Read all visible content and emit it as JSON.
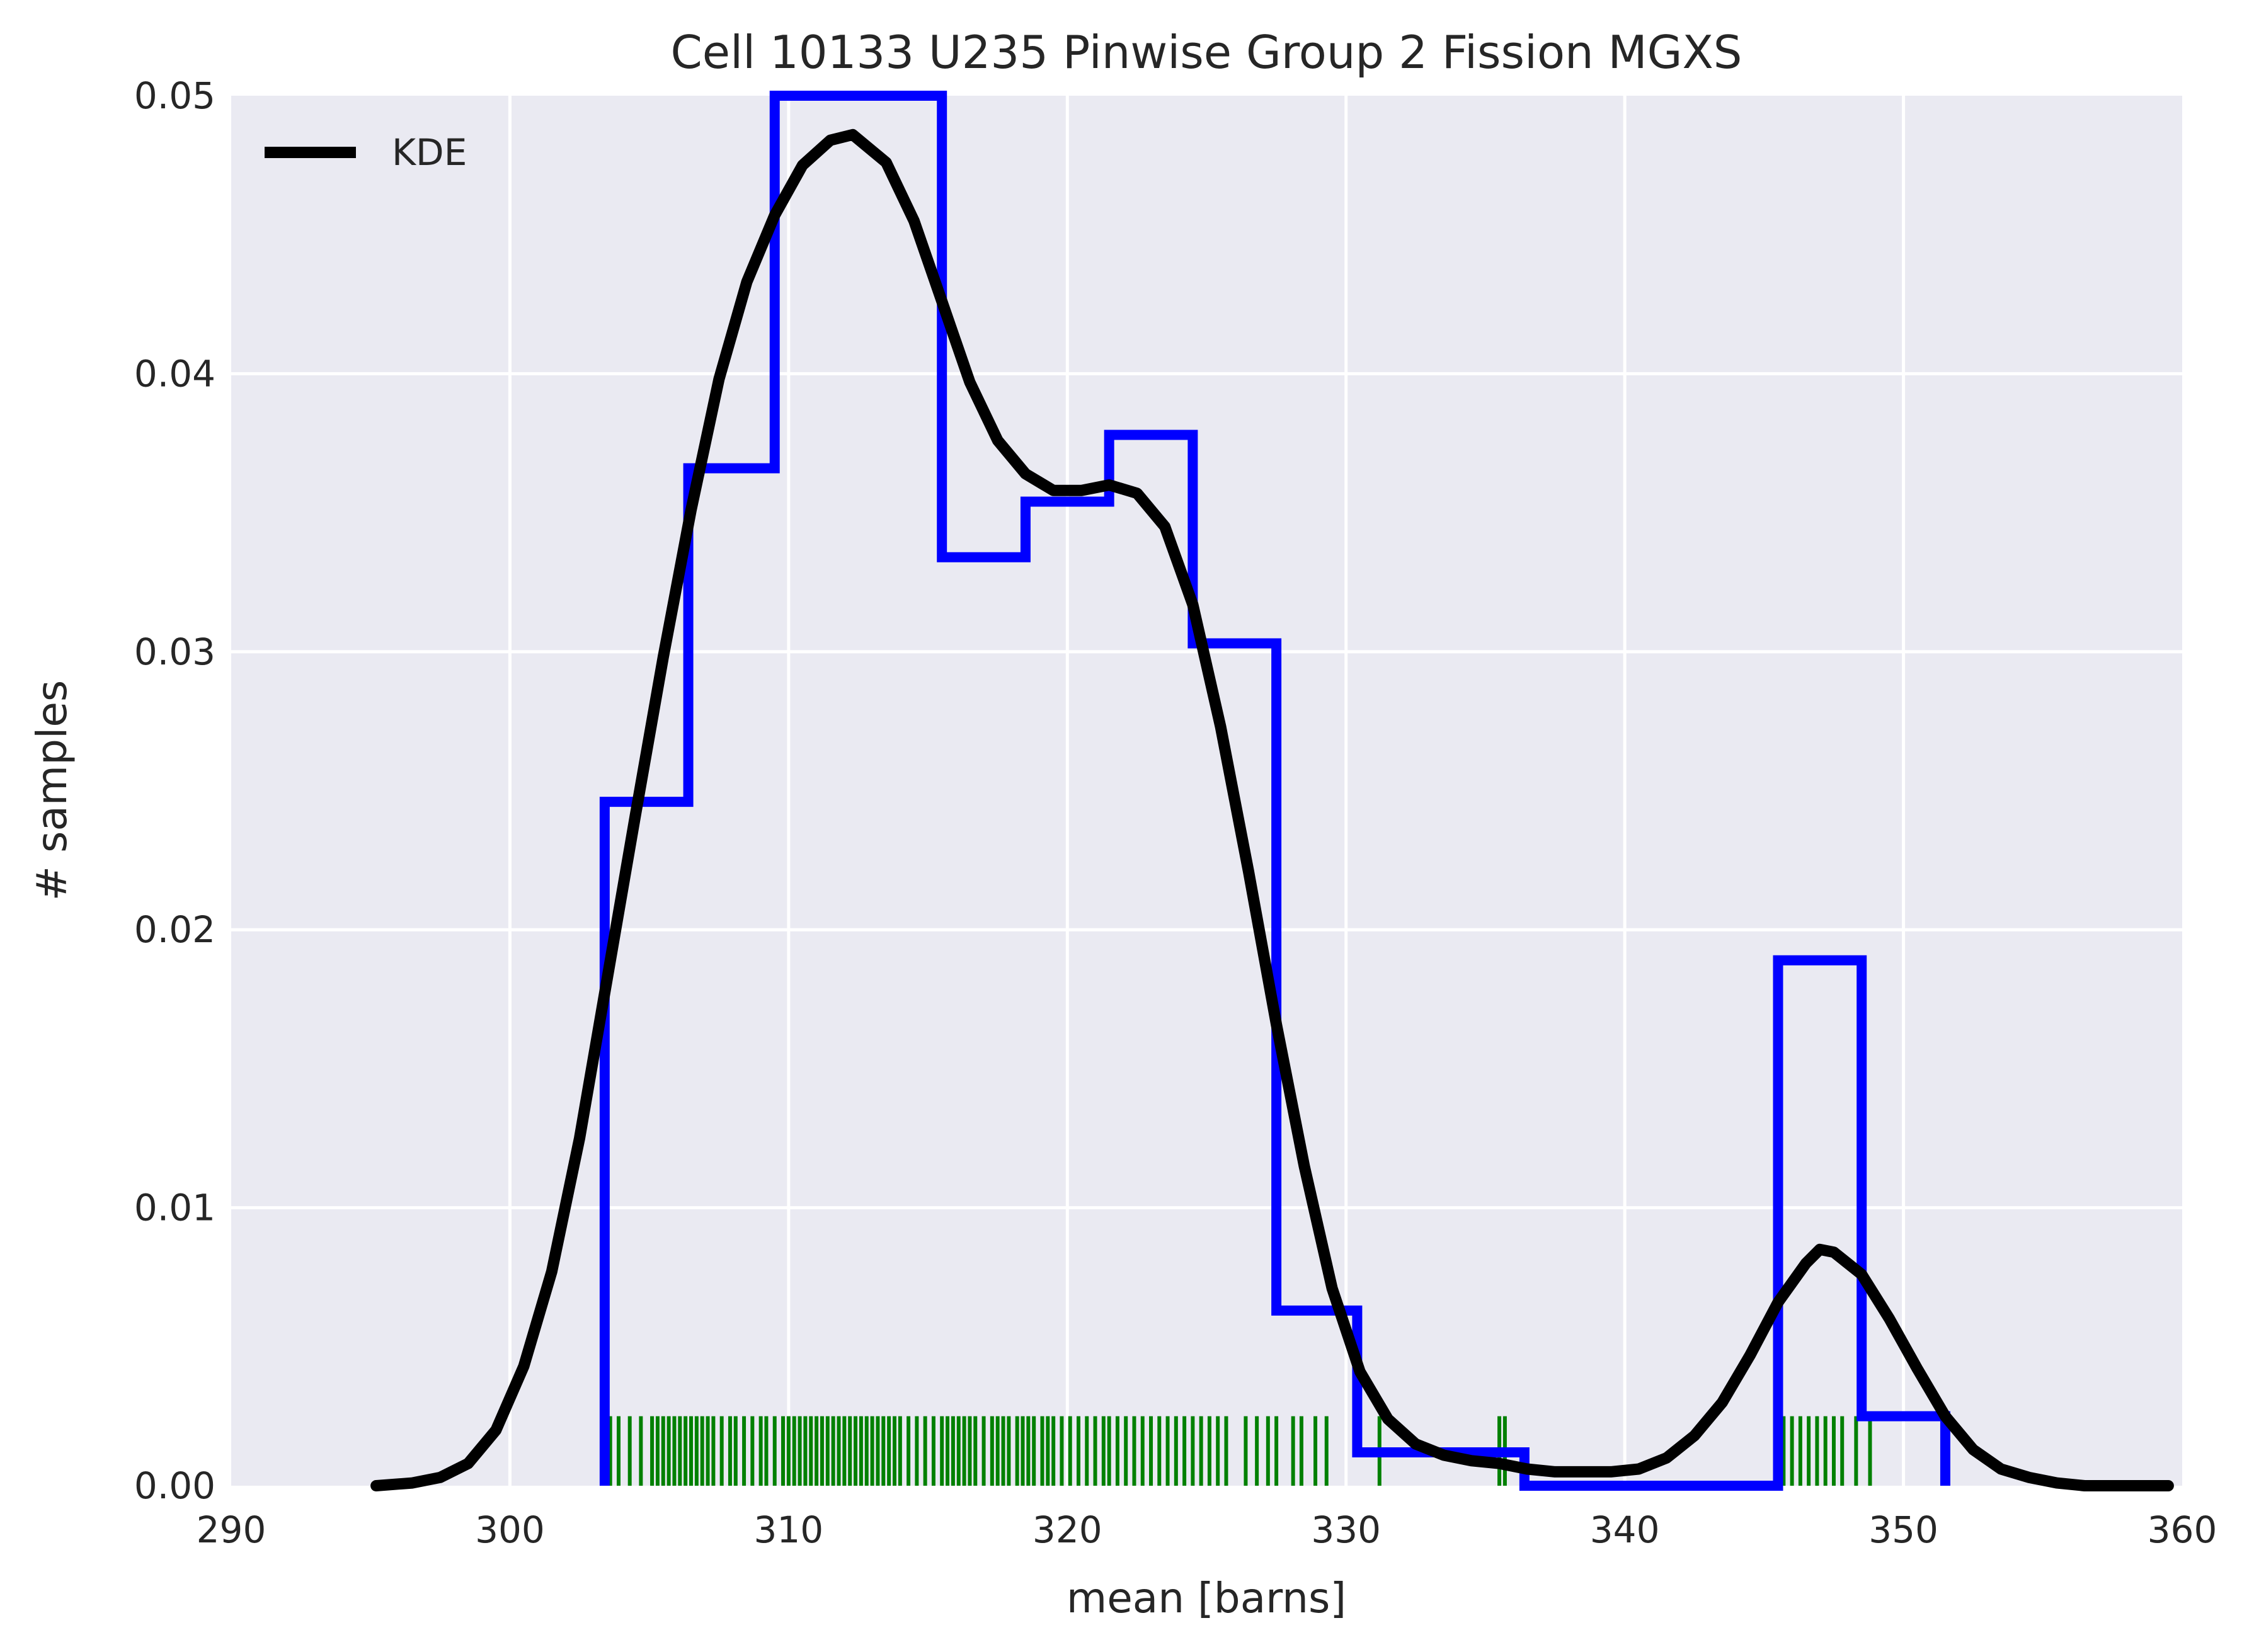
{
  "chart_data": {
    "type": "histogram",
    "title": "Cell 10133 U235 Pinwise Group 2 Fission MGXS",
    "xlabel": "mean [barns]",
    "ylabel": "# samples",
    "xlim": [
      290,
      360
    ],
    "ylim": [
      0,
      0.05
    ],
    "xticks": [
      "290",
      "300",
      "310",
      "320",
      "330",
      "340",
      "350",
      "360"
    ],
    "yticks": [
      "0.00",
      "0.01",
      "0.02",
      "0.03",
      "0.04",
      "0.05"
    ],
    "grid": true,
    "legend": {
      "position": "top-left",
      "entries": [
        "KDE"
      ]
    },
    "colors": {
      "background": "#eaeaf2",
      "grid": "#ffffff",
      "histogram": "#0000ff",
      "kde": "#000000",
      "rug": "#008000"
    },
    "histogram": {
      "bin_edges": [
        303.4,
        306.4,
        309.5,
        312.5,
        315.5,
        318.5,
        321.5,
        324.5,
        327.5,
        330.4,
        333.4,
        336.4,
        339.5,
        342.5,
        345.5,
        348.5,
        351.5
      ],
      "density": [
        0.0246,
        0.0366,
        0.0545,
        0.0545,
        0.0334,
        0.0354,
        0.0378,
        0.0303,
        0.0063,
        0.0012,
        0.0012,
        0.0,
        0.0,
        0.0,
        0.0189,
        0.0025
      ]
    },
    "kde": {
      "name": "KDE",
      "x": [
        295.2,
        296.5,
        297.5,
        298.5,
        299.5,
        300.5,
        301.5,
        302.5,
        303.5,
        304.5,
        305.5,
        306.5,
        307.5,
        308.5,
        309.5,
        310.5,
        311.5,
        312.3,
        313.5,
        314.5,
        315.5,
        316.5,
        317.5,
        318.5,
        319.5,
        320.5,
        321.5,
        322.5,
        323.5,
        324.5,
        325.5,
        326.5,
        327.5,
        328.5,
        329.5,
        330.5,
        331.5,
        332.5,
        333.5,
        334.5,
        335.5,
        336.5,
        337.5,
        338.5,
        339.5,
        340.5,
        341.5,
        342.5,
        343.5,
        344.5,
        345.5,
        346.5,
        347.0,
        347.5,
        348.5,
        349.5,
        350.5,
        351.5,
        352.5,
        353.5,
        354.5,
        355.5,
        356.5,
        357.5,
        359.5
      ],
      "y": [
        0.0,
        0.0001,
        0.0003,
        0.0008,
        0.002,
        0.0043,
        0.0077,
        0.0125,
        0.0183,
        0.0241,
        0.0298,
        0.0351,
        0.0398,
        0.0433,
        0.0457,
        0.0475,
        0.0484,
        0.0486,
        0.0476,
        0.0455,
        0.0426,
        0.0397,
        0.0376,
        0.0364,
        0.0358,
        0.0358,
        0.036,
        0.0357,
        0.0345,
        0.0317,
        0.0273,
        0.0221,
        0.0166,
        0.0115,
        0.0071,
        0.0041,
        0.0024,
        0.0015,
        0.0011,
        0.0009,
        0.0008,
        0.0006,
        0.0005,
        0.0005,
        0.0005,
        0.0006,
        0.001,
        0.0018,
        0.003,
        0.0047,
        0.0066,
        0.008,
        0.0085,
        0.0084,
        0.0076,
        0.006,
        0.0042,
        0.0025,
        0.0013,
        0.0006,
        0.0003,
        0.0001,
        0.0,
        0.0,
        0.0
      ]
    },
    "rug": {
      "height": 0.0025,
      "x": [
        303.6,
        303.9,
        304.3,
        304.7,
        305.1,
        305.3,
        305.5,
        305.7,
        305.9,
        306.1,
        306.3,
        306.5,
        306.7,
        306.9,
        307.1,
        307.3,
        307.6,
        307.9,
        308.1,
        308.4,
        308.7,
        309.0,
        309.2,
        309.5,
        309.8,
        310.0,
        310.2,
        310.4,
        310.6,
        310.8,
        311.0,
        311.2,
        311.4,
        311.6,
        311.8,
        312.0,
        312.2,
        312.4,
        312.6,
        312.8,
        313.0,
        313.2,
        313.4,
        313.6,
        313.8,
        314.0,
        314.3,
        314.6,
        314.9,
        315.2,
        315.5,
        315.7,
        315.9,
        316.1,
        316.3,
        316.5,
        316.7,
        317.0,
        317.3,
        317.5,
        317.7,
        317.9,
        318.2,
        318.4,
        318.6,
        318.8,
        319.1,
        319.3,
        319.5,
        319.8,
        320.1,
        320.4,
        320.7,
        321.0,
        321.3,
        321.5,
        321.8,
        322.1,
        322.4,
        322.7,
        323.0,
        323.3,
        323.6,
        323.9,
        324.2,
        324.5,
        324.8,
        325.1,
        325.4,
        325.7,
        326.4,
        326.8,
        327.2,
        327.5,
        328.1,
        328.4,
        328.9,
        329.3,
        331.2,
        335.5,
        335.7,
        345.7,
        346.0,
        346.3,
        346.6,
        346.9,
        347.2,
        347.5,
        347.8,
        348.3,
        348.8,
        351.4
      ]
    }
  }
}
